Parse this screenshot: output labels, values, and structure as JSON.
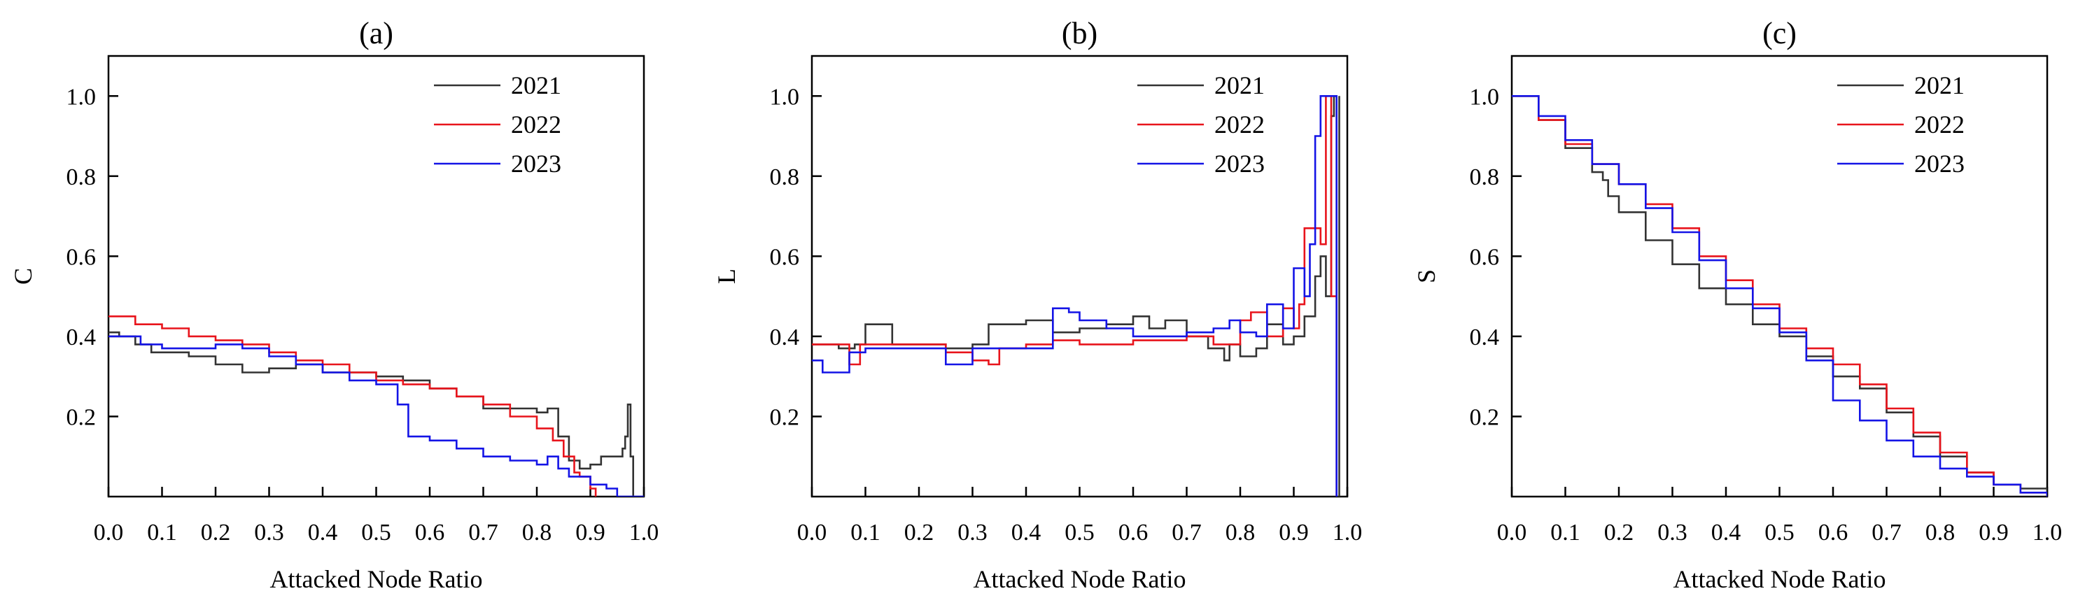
{
  "chart_data": [
    {
      "type": "line",
      "title": "(a)",
      "xlabel": "Attacked Node Ratio",
      "ylabel": "C",
      "xlim": [
        0,
        1
      ],
      "ylim": [
        0,
        1.1
      ],
      "xticks": [
        "0.0",
        "0.1",
        "0.2",
        "0.3",
        "0.4",
        "0.5",
        "0.6",
        "0.7",
        "0.8",
        "0.9",
        "1.0"
      ],
      "yticks": [
        "0.2",
        "0.4",
        "0.6",
        "0.8",
        "1.0"
      ],
      "legend_position": "top-right",
      "series": [
        {
          "name": "2021",
          "color": "#333333",
          "x": [
            0,
            0.02,
            0.05,
            0.08,
            0.1,
            0.15,
            0.2,
            0.25,
            0.3,
            0.35,
            0.4,
            0.45,
            0.5,
            0.55,
            0.6,
            0.65,
            0.7,
            0.75,
            0.8,
            0.82,
            0.84,
            0.86,
            0.88,
            0.9,
            0.92,
            0.94,
            0.96,
            0.965,
            0.97,
            0.975,
            0.98
          ],
          "y": [
            0.41,
            0.4,
            0.38,
            0.36,
            0.36,
            0.35,
            0.33,
            0.31,
            0.32,
            0.33,
            0.31,
            0.31,
            0.3,
            0.29,
            0.27,
            0.25,
            0.22,
            0.22,
            0.21,
            0.22,
            0.15,
            0.09,
            0.07,
            0.08,
            0.1,
            0.1,
            0.12,
            0.15,
            0.23,
            0.1,
            0.0
          ]
        },
        {
          "name": "2022",
          "color": "#e8141c",
          "x": [
            0,
            0.05,
            0.1,
            0.15,
            0.2,
            0.25,
            0.3,
            0.35,
            0.4,
            0.45,
            0.5,
            0.55,
            0.6,
            0.65,
            0.7,
            0.75,
            0.8,
            0.83,
            0.85,
            0.87,
            0.88,
            0.9,
            0.91
          ],
          "y": [
            0.45,
            0.43,
            0.42,
            0.4,
            0.39,
            0.38,
            0.36,
            0.34,
            0.33,
            0.31,
            0.29,
            0.28,
            0.27,
            0.25,
            0.23,
            0.2,
            0.17,
            0.14,
            0.1,
            0.06,
            0.05,
            0.02,
            0.0
          ]
        },
        {
          "name": "2023",
          "color": "#1414e6",
          "x": [
            0,
            0.03,
            0.06,
            0.1,
            0.15,
            0.2,
            0.25,
            0.3,
            0.35,
            0.4,
            0.45,
            0.5,
            0.54,
            0.56,
            0.58,
            0.6,
            0.65,
            0.7,
            0.75,
            0.8,
            0.82,
            0.84,
            0.86,
            0.88,
            0.9,
            0.93,
            0.95,
            1.0
          ],
          "y": [
            0.4,
            0.4,
            0.38,
            0.37,
            0.37,
            0.38,
            0.37,
            0.35,
            0.33,
            0.31,
            0.29,
            0.28,
            0.23,
            0.15,
            0.15,
            0.14,
            0.12,
            0.1,
            0.09,
            0.08,
            0.1,
            0.07,
            0.05,
            0.05,
            0.03,
            0.02,
            0.0,
            0.0
          ]
        }
      ]
    },
    {
      "type": "line",
      "title": "(b)",
      "xlabel": "Attacked Node Ratio",
      "ylabel": "L",
      "xlim": [
        0,
        1
      ],
      "ylim": [
        0,
        1.1
      ],
      "xticks": [
        "0.0",
        "0.1",
        "0.2",
        "0.3",
        "0.4",
        "0.5",
        "0.6",
        "0.7",
        "0.8",
        "0.9",
        "1.0"
      ],
      "yticks": [
        "0.2",
        "0.4",
        "0.6",
        "0.8",
        "1.0"
      ],
      "legend_position": "top-right",
      "series": [
        {
          "name": "2021",
          "color": "#333333",
          "x": [
            0,
            0.05,
            0.08,
            0.1,
            0.12,
            0.15,
            0.17,
            0.25,
            0.3,
            0.33,
            0.35,
            0.4,
            0.45,
            0.5,
            0.55,
            0.6,
            0.63,
            0.66,
            0.7,
            0.74,
            0.77,
            0.78,
            0.8,
            0.83,
            0.85,
            0.88,
            0.9,
            0.92,
            0.94,
            0.95,
            0.96,
            0.97,
            0.975,
            0.98,
            0.985
          ],
          "y": [
            0.38,
            0.37,
            0.38,
            0.43,
            0.43,
            0.38,
            0.38,
            0.37,
            0.38,
            0.43,
            0.43,
            0.44,
            0.41,
            0.42,
            0.43,
            0.45,
            0.42,
            0.44,
            0.4,
            0.37,
            0.34,
            0.38,
            0.35,
            0.37,
            0.43,
            0.38,
            0.4,
            0.45,
            0.55,
            0.6,
            0.5,
            0.95,
            1.0,
            0.0,
            1.0
          ]
        },
        {
          "name": "2022",
          "color": "#e8141c",
          "x": [
            0,
            0.05,
            0.07,
            0.09,
            0.15,
            0.25,
            0.3,
            0.33,
            0.35,
            0.4,
            0.45,
            0.5,
            0.55,
            0.6,
            0.65,
            0.7,
            0.75,
            0.8,
            0.82,
            0.85,
            0.88,
            0.9,
            0.91,
            0.92,
            0.93,
            0.95,
            0.96,
            0.97,
            0.98
          ],
          "y": [
            0.38,
            0.38,
            0.33,
            0.38,
            0.38,
            0.36,
            0.34,
            0.33,
            0.37,
            0.38,
            0.39,
            0.38,
            0.38,
            0.39,
            0.39,
            0.4,
            0.38,
            0.44,
            0.46,
            0.4,
            0.47,
            0.42,
            0.48,
            0.67,
            0.67,
            0.63,
            1.0,
            0.5,
            0.0
          ]
        },
        {
          "name": "2023",
          "color": "#1414e6",
          "x": [
            0,
            0.02,
            0.05,
            0.07,
            0.1,
            0.15,
            0.2,
            0.25,
            0.3,
            0.35,
            0.4,
            0.45,
            0.48,
            0.5,
            0.55,
            0.6,
            0.65,
            0.7,
            0.75,
            0.78,
            0.8,
            0.83,
            0.85,
            0.88,
            0.9,
            0.92,
            0.93,
            0.94,
            0.95,
            0.96,
            0.97,
            0.98
          ],
          "y": [
            0.34,
            0.31,
            0.31,
            0.36,
            0.37,
            0.37,
            0.37,
            0.33,
            0.37,
            0.37,
            0.37,
            0.47,
            0.46,
            0.44,
            0.42,
            0.4,
            0.4,
            0.41,
            0.42,
            0.44,
            0.41,
            0.4,
            0.48,
            0.42,
            0.57,
            0.5,
            0.63,
            0.9,
            1.0,
            1.0,
            1.0,
            0.0
          ]
        }
      ]
    },
    {
      "type": "line",
      "title": "(c)",
      "xlabel": "Attacked Node Ratio",
      "ylabel": "S",
      "xlim": [
        0,
        1
      ],
      "ylim": [
        0,
        1.1
      ],
      "xticks": [
        "0.0",
        "0.1",
        "0.2",
        "0.3",
        "0.4",
        "0.5",
        "0.6",
        "0.7",
        "0.8",
        "0.9",
        "1.0"
      ],
      "yticks": [
        "0.2",
        "0.4",
        "0.6",
        "0.8",
        "1.0"
      ],
      "legend_position": "top-right",
      "series": [
        {
          "name": "2021",
          "color": "#333333",
          "x": [
            0,
            0.05,
            0.1,
            0.15,
            0.17,
            0.18,
            0.2,
            0.25,
            0.3,
            0.35,
            0.4,
            0.45,
            0.5,
            0.55,
            0.6,
            0.65,
            0.7,
            0.75,
            0.8,
            0.85,
            0.9,
            0.95,
            1.0
          ],
          "y": [
            1.0,
            0.94,
            0.87,
            0.81,
            0.79,
            0.75,
            0.71,
            0.64,
            0.58,
            0.52,
            0.48,
            0.43,
            0.4,
            0.35,
            0.3,
            0.27,
            0.21,
            0.15,
            0.1,
            0.06,
            0.03,
            0.02,
            0.0
          ]
        },
        {
          "name": "2022",
          "color": "#e8141c",
          "x": [
            0,
            0.05,
            0.1,
            0.15,
            0.2,
            0.25,
            0.3,
            0.35,
            0.4,
            0.45,
            0.5,
            0.55,
            0.6,
            0.65,
            0.7,
            0.75,
            0.8,
            0.85,
            0.9,
            0.95,
            1.0
          ],
          "y": [
            1.0,
            0.94,
            0.88,
            0.83,
            0.78,
            0.73,
            0.67,
            0.6,
            0.54,
            0.48,
            0.42,
            0.37,
            0.33,
            0.28,
            0.22,
            0.16,
            0.11,
            0.06,
            0.03,
            0.01,
            0.0
          ]
        },
        {
          "name": "2023",
          "color": "#1414e6",
          "x": [
            0,
            0.05,
            0.1,
            0.15,
            0.2,
            0.25,
            0.3,
            0.35,
            0.4,
            0.45,
            0.5,
            0.55,
            0.6,
            0.65,
            0.7,
            0.75,
            0.8,
            0.85,
            0.9,
            0.95,
            1.0
          ],
          "y": [
            1.0,
            0.95,
            0.89,
            0.83,
            0.78,
            0.72,
            0.66,
            0.59,
            0.52,
            0.47,
            0.41,
            0.34,
            0.24,
            0.19,
            0.14,
            0.1,
            0.07,
            0.05,
            0.03,
            0.01,
            0.0
          ]
        }
      ]
    }
  ]
}
